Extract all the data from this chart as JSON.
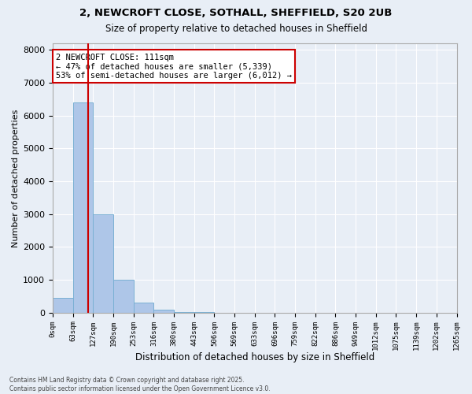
{
  "title_line1": "2, NEWCROFT CLOSE, SOTHALL, SHEFFIELD, S20 2UB",
  "title_line2": "Size of property relative to detached houses in Sheffield",
  "xlabel": "Distribution of detached houses by size in Sheffield",
  "ylabel": "Number of detached properties",
  "bar_color": "#aec6e8",
  "bar_edge_color": "#7ab0d4",
  "background_color": "#e8eef6",
  "grid_color": "#ffffff",
  "property_line_color": "#cc0000",
  "property_line_bar": 1.75,
  "annotation_text": "2 NEWCROFT CLOSE: 111sqm\n← 47% of detached houses are smaller (5,339)\n53% of semi-detached houses are larger (6,012) →",
  "annotation_box_color": "#cc0000",
  "footer_line1": "Contains HM Land Registry data © Crown copyright and database right 2025.",
  "footer_line2": "Contains public sector information licensed under the Open Government Licence v3.0.",
  "bin_labels": [
    "0sqm",
    "63sqm",
    "127sqm",
    "190sqm",
    "253sqm",
    "316sqm",
    "380sqm",
    "443sqm",
    "506sqm",
    "569sqm",
    "633sqm",
    "696sqm",
    "759sqm",
    "822sqm",
    "886sqm",
    "949sqm",
    "1012sqm",
    "1075sqm",
    "1139sqm",
    "1202sqm",
    "1265sqm"
  ],
  "bar_heights": [
    450,
    6400,
    3000,
    1000,
    300,
    100,
    30,
    10,
    5,
    3,
    2,
    1,
    1,
    0,
    0,
    0,
    0,
    0,
    0,
    0
  ],
  "ylim": [
    0,
    8200
  ],
  "yticks": [
    0,
    1000,
    2000,
    3000,
    4000,
    5000,
    6000,
    7000,
    8000
  ],
  "n_bars": 20
}
